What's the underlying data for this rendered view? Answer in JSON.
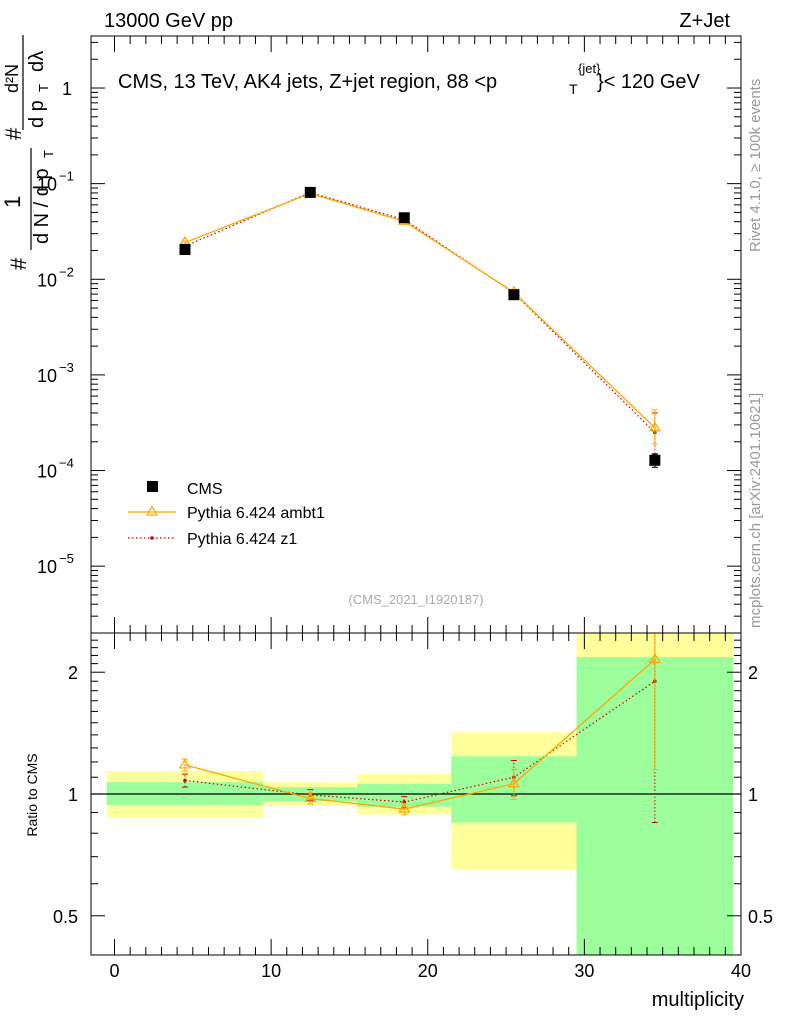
{
  "header": {
    "left": "13000 GeV pp",
    "right": "Z+Jet"
  },
  "side_labels": {
    "rivet": "Rivet 4.1.0, ≥ 100k events",
    "mcplots": "mcplots.cern.ch [arXiv:2401.10621]"
  },
  "chart_data": [
    {
      "type": "scatter",
      "panel": "main",
      "title_parts": {
        "main": "CMS, 13 TeV, AK4 jets, Z+jet region, 88 <p",
        "sub": "T",
        "sup": "{jet}",
        "tail": "}< 120 GeV"
      },
      "watermark": "(CMS_2021_I1920187)",
      "ylabel": {
        "num_top": "#",
        "frac_one": "1",
        "den": "d N / d p",
        "den_sub": "T",
        "hash2": "#",
        "d2N": "d²N",
        "dpT": "d p",
        "dpT_sub": "T",
        "dl": "dλ"
      },
      "yscale": "log",
      "ylim": [
        2e-06,
        3.5
      ],
      "xlim": [
        -1.5,
        40
      ],
      "y_ticks": [
        {
          "value": 1,
          "base": "1",
          "exp": ""
        },
        {
          "value": 0.1,
          "base": "10",
          "exp": "−1"
        },
        {
          "value": 0.01,
          "base": "10",
          "exp": "−2"
        },
        {
          "value": 0.001,
          "base": "10",
          "exp": "−3"
        },
        {
          "value": 0.0001,
          "base": "10",
          "exp": "−4"
        },
        {
          "value": 1e-05,
          "base": "10",
          "exp": "−5"
        }
      ],
      "legend_position": "lower-left",
      "series": [
        {
          "name": "CMS",
          "style": "marker-square",
          "color": "#000000",
          "x": [
            4.5,
            12.5,
            18.5,
            25.5,
            34.5
          ],
          "y": [
            0.0205,
            0.081,
            0.044,
            0.0069,
            0.000128
          ],
          "yerr_low": [
            0,
            0,
            0,
            0,
            2e-05
          ],
          "yerr_high": [
            0,
            0,
            0,
            0,
            2e-05
          ]
        },
        {
          "name": "Pythia 6.424 ambt1",
          "style": "line-triangle",
          "color": "#ffa500",
          "x": [
            4.5,
            12.5,
            18.5,
            25.5,
            34.5
          ],
          "y": [
            0.0242,
            0.079,
            0.0404,
            0.0073,
            0.00028
          ],
          "yerr_low": [
            0.0008,
            0.002,
            0.001,
            0.0003,
            9e-05
          ],
          "yerr_high": [
            0.0008,
            0.002,
            0.001,
            0.0003,
            0.00015
          ]
        },
        {
          "name": "Pythia 6.424 z1",
          "style": "dotted-dot",
          "color": "#cc0000",
          "x": [
            4.5,
            12.5,
            18.5,
            25.5,
            34.5
          ],
          "y": [
            0.0222,
            0.081,
            0.042,
            0.0072,
            0.00025
          ],
          "yerr_low": [
            0.0007,
            0.002,
            0.001,
            0.0003,
            0.0001
          ],
          "yerr_high": [
            0.0007,
            0.002,
            0.001,
            0.0003,
            0.00015
          ]
        }
      ]
    },
    {
      "type": "scatter",
      "panel": "ratio",
      "ylabel": "Ratio to CMS",
      "xlabel": "multiplicity",
      "yscale": "log",
      "ylim": [
        0.4,
        2.5
      ],
      "xlim": [
        -1.5,
        40
      ],
      "x_ticks": [
        0,
        10,
        20,
        30,
        40
      ],
      "y_ticks": [
        {
          "value": 0.5,
          "label": "0.5"
        },
        {
          "value": 1,
          "label": "1"
        },
        {
          "value": 2,
          "label": "2"
        }
      ],
      "reference_line": 1,
      "bands": [
        {
          "x0": -0.5,
          "x1": 9.5,
          "inner": [
            0.94,
            1.07
          ],
          "outer": [
            0.875,
            1.14
          ]
        },
        {
          "x0": 9.5,
          "x1": 15.5,
          "inner": [
            0.96,
            1.04
          ],
          "outer": [
            0.935,
            1.07
          ]
        },
        {
          "x0": 15.5,
          "x1": 21.5,
          "inner": [
            0.93,
            1.06
          ],
          "outer": [
            0.89,
            1.12
          ]
        },
        {
          "x0": 21.5,
          "x1": 29.5,
          "inner": [
            0.85,
            1.24
          ],
          "outer": [
            0.65,
            1.42
          ]
        },
        {
          "x0": 29.5,
          "x1": 39.5,
          "inner": [
            0.4,
            2.18
          ],
          "outer": [
            0.4,
            2.5
          ]
        }
      ],
      "band_colors": {
        "inner": "#9cff9c",
        "outer": "#ffff9c"
      },
      "series": [
        {
          "name": "Pythia 6.424 ambt1",
          "style": "line-triangle",
          "color": "#ffa500",
          "x": [
            4.5,
            12.5,
            18.5,
            25.5,
            34.5
          ],
          "y": [
            1.18,
            0.975,
            0.918,
            1.06,
            2.15
          ],
          "yerr_low": [
            0.04,
            0.03,
            0.03,
            0.09,
            1.0
          ],
          "yerr_high": [
            0.04,
            0.03,
            0.03,
            0.09,
            0.35
          ]
        },
        {
          "name": "Pythia 6.424 z1",
          "style": "dotted-dot",
          "color": "#cc0000",
          "x": [
            4.5,
            12.5,
            18.5,
            25.5,
            34.5
          ],
          "y": [
            1.08,
            0.995,
            0.955,
            1.1,
            1.9
          ],
          "yerr_low": [
            0.04,
            0.03,
            0.03,
            0.11,
            1.05
          ],
          "yerr_high": [
            0.04,
            0.03,
            0.03,
            0.11,
            0.6
          ]
        }
      ]
    }
  ]
}
